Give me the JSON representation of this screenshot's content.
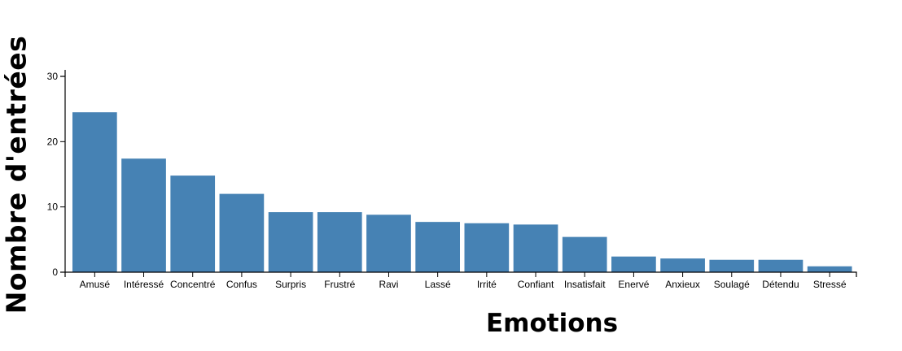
{
  "chart_data": {
    "type": "bar",
    "title": "",
    "xlabel": "Emotions",
    "ylabel": "Nombre d'entrées",
    "ylim": [
      0,
      30
    ],
    "yticks": [
      0,
      10,
      20,
      30
    ],
    "grid": false,
    "legend": null,
    "color": "#4682b4",
    "categories": [
      "Amusé",
      "Intéressé",
      "Concentré",
      "Confus",
      "Surpris",
      "Frustré",
      "Ravi",
      "Lassé",
      "Irrité",
      "Confiant",
      "Insatisfait",
      "Enervé",
      "Anxieux",
      "Soulagé",
      "Détendu",
      "Stressé"
    ],
    "values": [
      24.5,
      17.4,
      14.8,
      12.0,
      9.2,
      9.2,
      8.8,
      7.7,
      7.5,
      7.3,
      5.4,
      2.4,
      2.1,
      1.9,
      1.9,
      0.9
    ]
  }
}
